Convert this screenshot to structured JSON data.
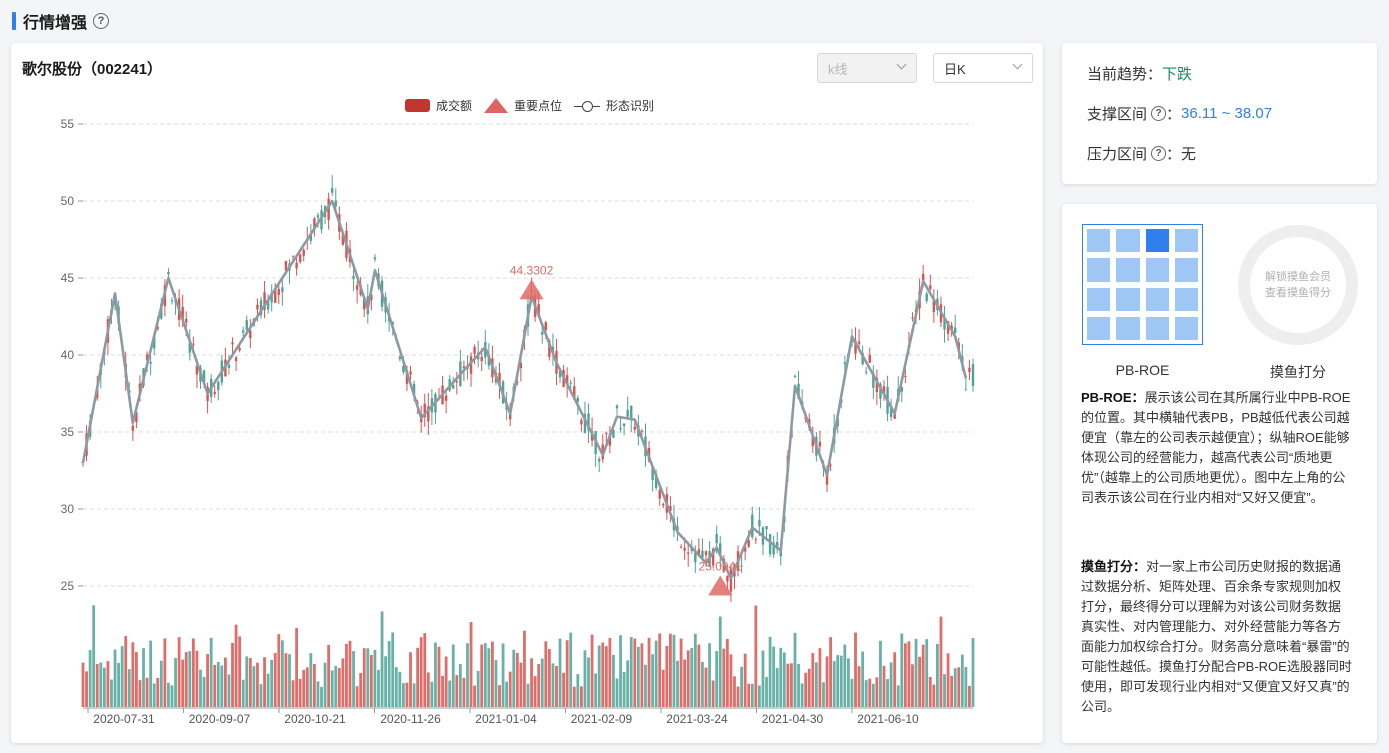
{
  "section": {
    "title": "行情增强",
    "help_glyph": "?"
  },
  "chart_panel": {
    "stock_name": "歌尔股份（002241）",
    "kline_select": "k线",
    "period_select": "日K",
    "legend": {
      "volume": "成交额",
      "key_points": "重要点位",
      "pattern": "形态识别"
    }
  },
  "trend": {
    "current_trend_label": "当前趋势：",
    "current_trend_value": "下跌",
    "support_label": "支撑区间",
    "support_value": "36.11 ~ 38.07",
    "pressure_label": "压力区间",
    "pressure_value": "无",
    "colon": "："
  },
  "info": {
    "matrix_label": "PB-ROE",
    "highlight_cell": [
      0,
      2
    ],
    "ring_text_1": "解锁摸鱼会员",
    "ring_text_2": "查看摸鱼得分",
    "ring_label": "摸鱼打分",
    "pbroe_title": "PB-ROE：",
    "pbroe_text": "展示该公司在其所属行业中PB-ROE的位置。其中横轴代表PB，PB越低代表公司越便宜（靠左的公司表示越便宜）；纵轴ROE能够体现公司的经营能力，越高代表公司“质地更优”（越靠上的公司质地更优）。图中左上角的公司表示该公司在行业内相对“又好又便宜”。",
    "moyu_title": "摸鱼打分：",
    "moyu_text": "对一家上市公司历史财报的数据通过数据分析、矩阵处理、百余条专家规则加权打分，最终得分可以理解为对该公司财务数据真实性、对内管理能力、对外经营能力等各方面能力加权综合打分。财务高分意味着“暴雷”的可能性越低。摸鱼打分配合PB-ROE选股器同时使用，即可发现行业内相对“又便宜又好又真”的公司。"
  },
  "colors": {
    "up": "#d9534f",
    "down": "#4fa396",
    "pattern": "#8e9aa3",
    "accent": "#2f80ed"
  },
  "chart_data": {
    "type": "candlestick",
    "y_ticks": [
      "55",
      "50",
      "45",
      "40",
      "35",
      "30",
      "25"
    ],
    "ylim": [
      25,
      55
    ],
    "x_tick_labels": [
      "2020-07-31",
      "2020-09-07",
      "2020-10-21",
      "2020-11-26",
      "2021-01-04",
      "2021-02-09",
      "2021-03-24",
      "2021-04-30",
      "2021-06-10"
    ],
    "n_bars": 228,
    "pattern_points": [
      {
        "i": 0,
        "v": 33.0
      },
      {
        "i": 9,
        "v": 44.0
      },
      {
        "i": 14,
        "v": 35.6
      },
      {
        "i": 24,
        "v": 45.0
      },
      {
        "i": 35,
        "v": 37.5
      },
      {
        "i": 70,
        "v": 50.0
      },
      {
        "i": 80,
        "v": 43.0
      },
      {
        "i": 82,
        "v": 45.5
      },
      {
        "i": 95,
        "v": 35.9
      },
      {
        "i": 113,
        "v": 40.5
      },
      {
        "i": 107,
        "v": 39.0
      },
      {
        "i": 120,
        "v": 36.2
      },
      {
        "i": 126,
        "v": 43.8
      },
      {
        "i": 133,
        "v": 39.5
      },
      {
        "i": 146,
        "v": 33.5
      },
      {
        "i": 150,
        "v": 36.0
      },
      {
        "i": 155,
        "v": 35.8
      },
      {
        "i": 167,
        "v": 28.5
      },
      {
        "i": 175,
        "v": 26.5
      },
      {
        "i": 178,
        "v": 27.5
      },
      {
        "i": 182,
        "v": 25.5
      },
      {
        "i": 188,
        "v": 28.8
      },
      {
        "i": 196,
        "v": 27.3
      },
      {
        "i": 200,
        "v": 38.0
      },
      {
        "i": 209,
        "v": 32.2
      },
      {
        "i": 216,
        "v": 41.2
      },
      {
        "i": 228,
        "v": 36.2
      },
      {
        "i": 236,
        "v": 44.8
      },
      {
        "i": 245,
        "v": 41.2
      },
      {
        "i": 248,
        "v": 38.5
      }
    ],
    "key_points": [
      {
        "i": 126,
        "v": 44.3302,
        "label": "44.3302"
      },
      {
        "i": 179,
        "v": 25.0941,
        "label": "25.0941"
      }
    ],
    "volume_max_rel": 1.0
  }
}
